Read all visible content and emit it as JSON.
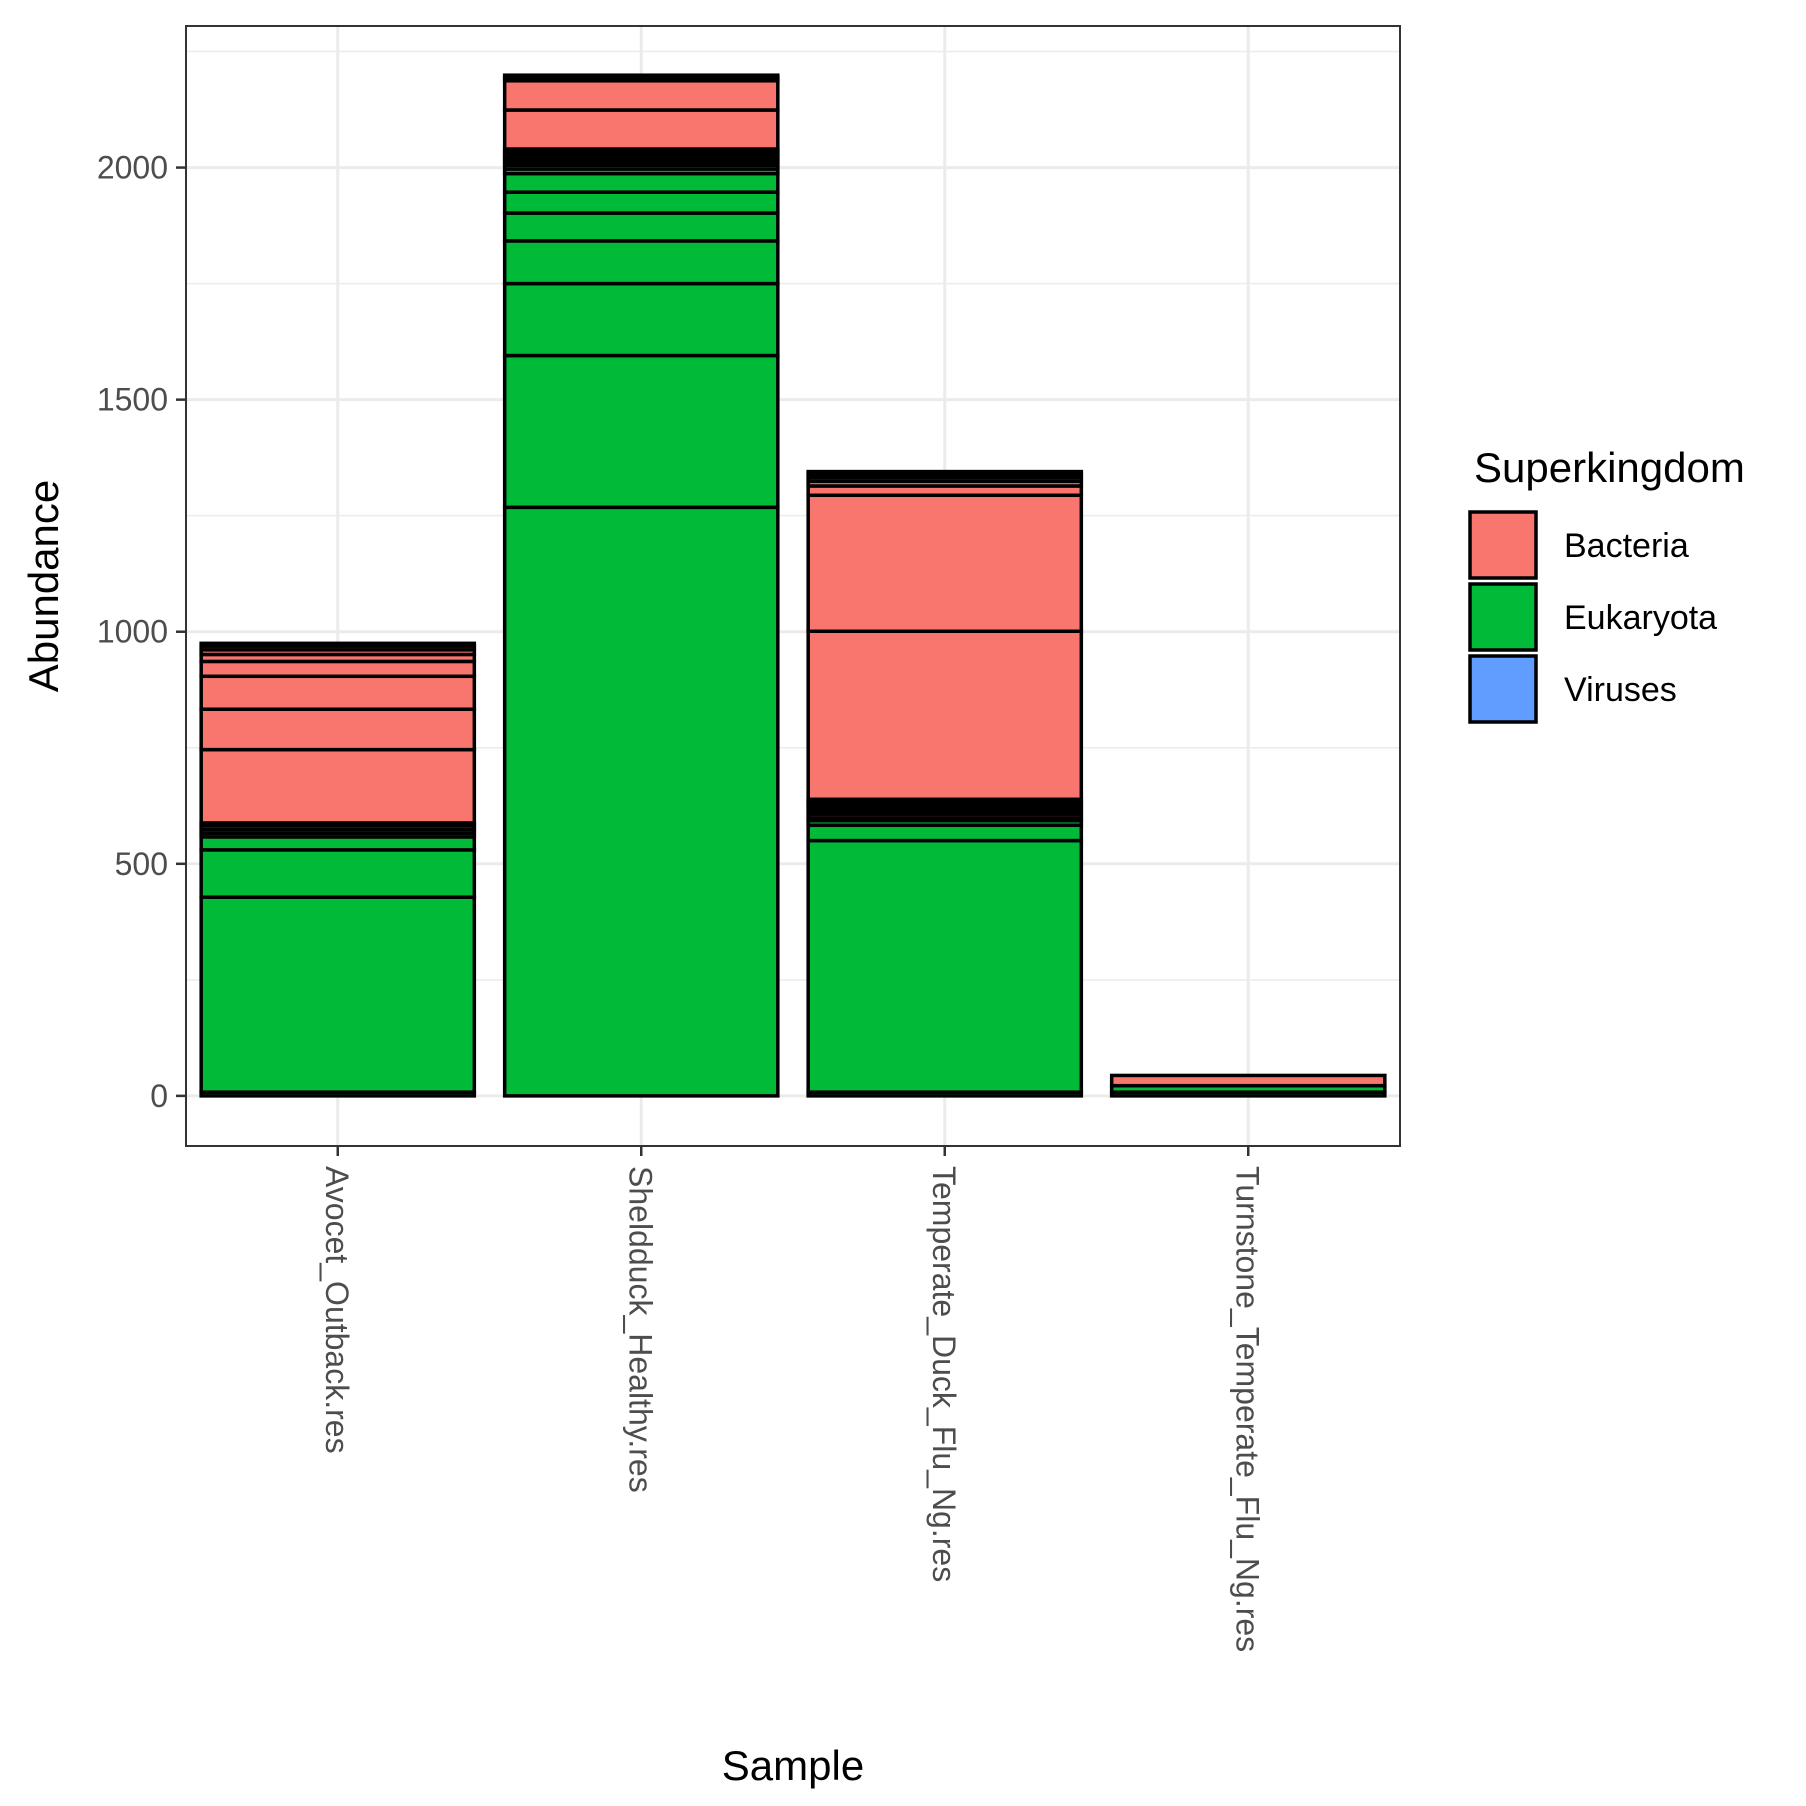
{
  "chart_data": {
    "type": "bar",
    "stacked": true,
    "xlabel": "Sample",
    "ylabel": "Abundance",
    "ylim": [
      -108,
      2305
    ],
    "yticks": [
      0,
      500,
      1000,
      1500,
      2000
    ],
    "grid": true,
    "legend": {
      "title": "Superkingdom",
      "placement": "right",
      "entries": [
        {
          "name": "Bacteria",
          "color": "#F8766D"
        },
        {
          "name": "Eukaryota",
          "color": "#00BA38"
        },
        {
          "name": "Viruses",
          "color": "#619CFF"
        }
      ]
    },
    "categories": [
      "Avocet_Outback.res",
      "Sheldduck_Healthy.res",
      "Temperate_Duck_Flu_Ng.res",
      "Turnstone_Temperate_Flu_Ng.res"
    ],
    "stacks": [
      {
        "category": "Avocet_Outback.res",
        "segments": [
          {
            "kingdom": "Eukaryota",
            "value": 8
          },
          {
            "kingdom": "Eukaryota",
            "value": 420
          },
          {
            "kingdom": "Eukaryota",
            "value": 102
          },
          {
            "kingdom": "Eukaryota",
            "value": 28
          },
          {
            "kingdom": "Eukaryota",
            "value": 8
          },
          {
            "kingdom": "Eukaryota",
            "value": 8
          },
          {
            "kingdom": "Eukaryota",
            "value": 8
          },
          {
            "kingdom": "Eukaryota",
            "value": 6
          },
          {
            "kingdom": "Bacteria",
            "value": 158
          },
          {
            "kingdom": "Bacteria",
            "value": 87
          },
          {
            "kingdom": "Bacteria",
            "value": 71
          },
          {
            "kingdom": "Bacteria",
            "value": 32
          },
          {
            "kingdom": "Bacteria",
            "value": 15
          },
          {
            "kingdom": "Bacteria",
            "value": 10
          },
          {
            "kingdom": "Bacteria",
            "value": 8
          },
          {
            "kingdom": "Bacteria",
            "value": 6
          }
        ]
      },
      {
        "category": "Sheldduck_Healthy.res",
        "segments": [
          {
            "kingdom": "Eukaryota",
            "value": 1268
          },
          {
            "kingdom": "Eukaryota",
            "value": 327
          },
          {
            "kingdom": "Eukaryota",
            "value": 155
          },
          {
            "kingdom": "Eukaryota",
            "value": 92
          },
          {
            "kingdom": "Eukaryota",
            "value": 60
          },
          {
            "kingdom": "Eukaryota",
            "value": 45
          },
          {
            "kingdom": "Eukaryota",
            "value": 40
          },
          {
            "kingdom": "Eukaryota",
            "value": 10
          },
          {
            "kingdom": "Eukaryota",
            "value": 8
          },
          {
            "kingdom": "Eukaryota",
            "value": 7
          },
          {
            "kingdom": "Eukaryota",
            "value": 6
          },
          {
            "kingdom": "Eukaryota",
            "value": 6
          },
          {
            "kingdom": "Eukaryota",
            "value": 6
          },
          {
            "kingdom": "Eukaryota",
            "value": 5
          },
          {
            "kingdom": "Eukaryota",
            "value": 5
          },
          {
            "kingdom": "Bacteria",
            "value": 84
          },
          {
            "kingdom": "Bacteria",
            "value": 63
          },
          {
            "kingdom": "Bacteria",
            "value": 6
          },
          {
            "kingdom": "Bacteria",
            "value": 6
          }
        ]
      },
      {
        "category": "Temperate_Duck_Flu_Ng.res",
        "segments": [
          {
            "kingdom": "Eukaryota",
            "value": 8
          },
          {
            "kingdom": "Eukaryota",
            "value": 542
          },
          {
            "kingdom": "Eukaryota",
            "value": 33
          },
          {
            "kingdom": "Eukaryota",
            "value": 10
          },
          {
            "kingdom": "Eukaryota",
            "value": 6
          },
          {
            "kingdom": "Bacteria",
            "value": 8
          },
          {
            "kingdom": "Bacteria",
            "value": 7
          },
          {
            "kingdom": "Bacteria",
            "value": 7
          },
          {
            "kingdom": "Bacteria",
            "value": 6
          },
          {
            "kingdom": "Bacteria",
            "value": 6
          },
          {
            "kingdom": "Bacteria",
            "value": 6
          },
          {
            "kingdom": "Bacteria",
            "value": 362
          },
          {
            "kingdom": "Bacteria",
            "value": 293
          },
          {
            "kingdom": "Bacteria",
            "value": 20
          },
          {
            "kingdom": "Bacteria",
            "value": 10
          },
          {
            "kingdom": "Bacteria",
            "value": 8
          },
          {
            "kingdom": "Bacteria",
            "value": 7
          },
          {
            "kingdom": "Bacteria",
            "value": 6
          }
        ]
      },
      {
        "category": "Turnstone_Temperate_Flu_Ng.res",
        "segments": [
          {
            "kingdom": "Eukaryota",
            "value": 8
          },
          {
            "kingdom": "Eukaryota",
            "value": 14
          },
          {
            "kingdom": "Bacteria",
            "value": 22
          }
        ]
      }
    ]
  }
}
